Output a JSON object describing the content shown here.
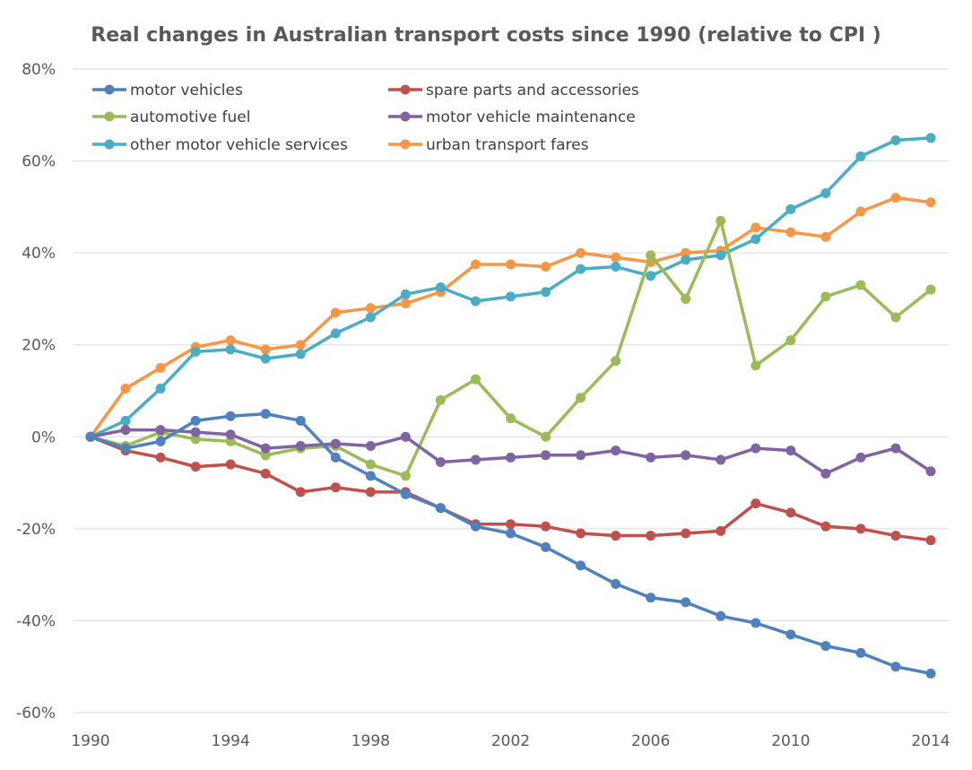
{
  "chart_data": {
    "type": "line",
    "title": "Real changes in Australian transport costs since 1990 (relative to CPI )",
    "xlabel": "",
    "ylabel": "",
    "x": [
      1990,
      1991,
      1992,
      1993,
      1994,
      1995,
      1996,
      1997,
      1998,
      1999,
      2000,
      2001,
      2002,
      2003,
      2004,
      2005,
      2006,
      2007,
      2008,
      2009,
      2010,
      2011,
      2012,
      2013,
      2014
    ],
    "x_ticks": [
      "1990",
      "1994",
      "1998",
      "2002",
      "2006",
      "2010",
      "2014"
    ],
    "x_tick_values": [
      1990,
      1994,
      1998,
      2002,
      2006,
      2010,
      2014
    ],
    "y_ticks": [
      "80%",
      "60%",
      "40%",
      "20%",
      "0%",
      "-20%",
      "-40%",
      "-60%"
    ],
    "y_tick_values": [
      80,
      60,
      40,
      20,
      0,
      -20,
      -40,
      -60
    ],
    "ylim": [
      -60,
      80
    ],
    "xlim": [
      1990,
      2014
    ],
    "grid": true,
    "legend_position": "top-left",
    "series": [
      {
        "name": "motor vehicles",
        "color": "#4f81bd",
        "values": [
          0,
          -2.5,
          -1,
          3.5,
          4.5,
          5,
          3.5,
          -4.5,
          -8.5,
          -12.5,
          -15.5,
          -19.5,
          -21,
          -24,
          -28,
          -32,
          -35,
          -36,
          -39,
          -40.5,
          -43,
          -45.5,
          -47,
          -50,
          -51.5
        ]
      },
      {
        "name": "spare parts and accessories",
        "color": "#c0504d",
        "values": [
          0,
          -3,
          -4.5,
          -6.5,
          -6,
          -8,
          -12,
          -11,
          -12,
          -12,
          -15.5,
          -19,
          -19,
          -19.5,
          -21,
          -21.5,
          -21.5,
          -21,
          -20.5,
          -14.5,
          -16.5,
          -19.5,
          -20,
          -21.5,
          -22.5
        ]
      },
      {
        "name": "automotive fuel",
        "color": "#9bbb59",
        "values": [
          0,
          -2,
          1,
          -0.5,
          -1,
          -4,
          -2.5,
          -2,
          -6,
          -8.5,
          8,
          12.5,
          4,
          0,
          8.5,
          16.5,
          39.5,
          30,
          47,
          15.5,
          21,
          30.5,
          33,
          26,
          32
        ]
      },
      {
        "name": "motor vehicle maintenance",
        "color": "#8064a2",
        "values": [
          0,
          1.5,
          1.5,
          1,
          0.5,
          -2.5,
          -2,
          -1.5,
          -2,
          0,
          -5.5,
          -5,
          -4.5,
          -4,
          -4,
          -3,
          -4.5,
          -4,
          -5,
          -2.5,
          -3,
          -8,
          -4.5,
          -2.5,
          -7.5
        ]
      },
      {
        "name": "other motor vehicle services",
        "color": "#4bacc6",
        "values": [
          0,
          3.5,
          10.5,
          18.5,
          19,
          17,
          18,
          22.5,
          26,
          31,
          32.5,
          29.5,
          30.5,
          31.5,
          36.5,
          37,
          35,
          38.5,
          39.5,
          43,
          49.5,
          53,
          61,
          64.5,
          65
        ]
      },
      {
        "name": "urban transport fares",
        "color": "#f79646",
        "values": [
          0,
          10.5,
          15,
          19.5,
          21,
          19,
          20,
          27,
          28,
          29,
          31.5,
          37.5,
          37.5,
          37,
          40,
          39,
          38,
          40,
          40.5,
          45.5,
          44.5,
          43.5,
          49,
          52,
          51
        ]
      }
    ]
  }
}
